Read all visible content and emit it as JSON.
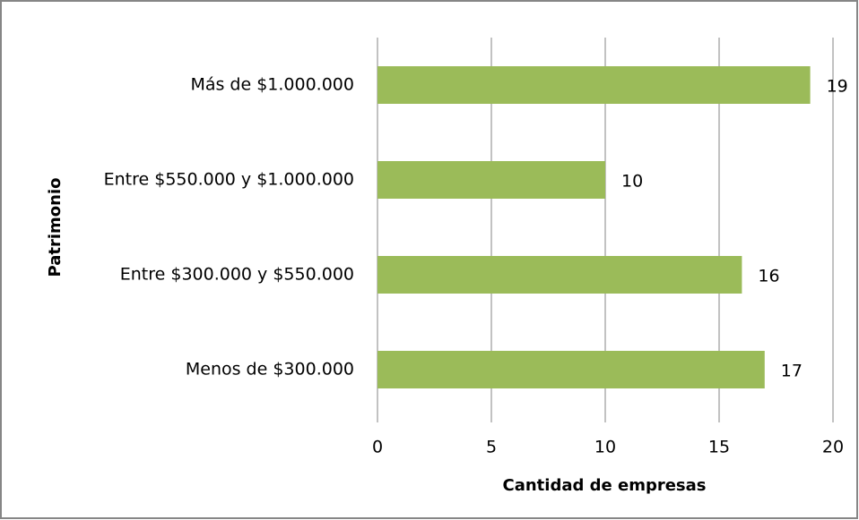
{
  "chart_data": {
    "type": "bar",
    "orientation": "horizontal",
    "xlabel": "Cantidad de empresas",
    "ylabel": "Patrimonio",
    "categories": [
      "Más de $1.000.000",
      "Entre $550.000 y $1.000.000",
      "Entre $300.000 y $550.000",
      "Menos de $300.000"
    ],
    "values": [
      19,
      10,
      16,
      17
    ],
    "color": "#9bbb59",
    "xlim": [
      0,
      20
    ],
    "xticks": [
      0,
      5,
      10,
      15,
      20
    ],
    "grid": true
  }
}
